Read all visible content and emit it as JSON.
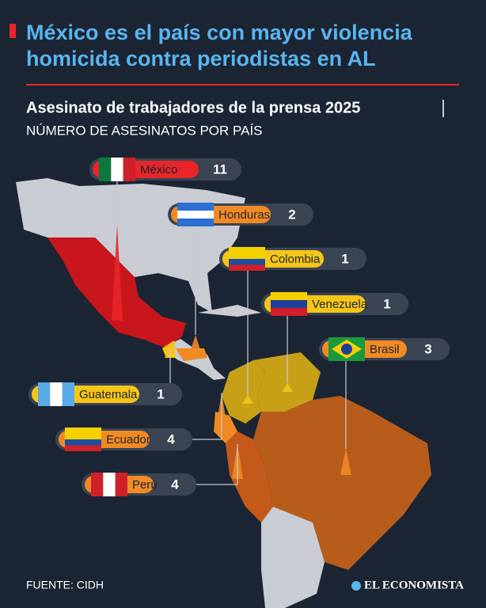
{
  "header": {
    "title_lines": [
      "México es el país con mayor violencia",
      "homicida contra periodistas en AL"
    ],
    "subtitle": "Asesinato de trabajadores de la prensa 2025",
    "unit": "NÚMERO DE ASESINATOS POR PAÍS"
  },
  "countries": [
    {
      "name": "México",
      "value": 11,
      "color": "#e8262a"
    },
    {
      "name": "Honduras",
      "value": 2,
      "color": "#f08a24"
    },
    {
      "name": "Colombia",
      "value": 1,
      "color": "#f5c518"
    },
    {
      "name": "Venezuela",
      "value": 1,
      "color": "#f5c518"
    },
    {
      "name": "Brasil",
      "value": 3,
      "color": "#f08a24"
    },
    {
      "name": "Guatemala",
      "value": 1,
      "color": "#f5c518"
    },
    {
      "name": "Ecuador",
      "value": 4,
      "color": "#f08a24"
    },
    {
      "name": "Perú",
      "value": 4,
      "color": "#f08a24"
    }
  ],
  "footer": {
    "source": "FUENTE: CIDH",
    "brand": "EL ECONOMISTA"
  }
}
